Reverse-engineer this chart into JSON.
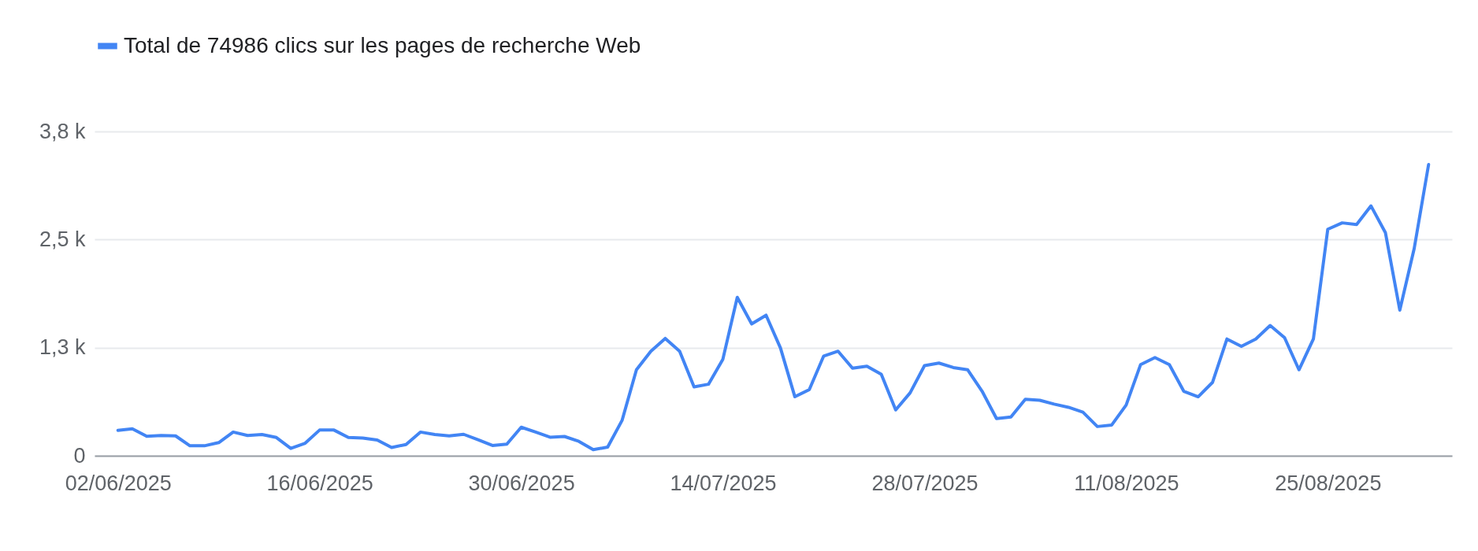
{
  "chart_data": {
    "type": "line",
    "legend": "top left",
    "grid": "y",
    "marker": "none",
    "line_style": "solid",
    "x": [
      "2025-06-02",
      "2025-06-03",
      "2025-06-04",
      "2025-06-05",
      "2025-06-06",
      "2025-06-07",
      "2025-06-08",
      "2025-06-09",
      "2025-06-10",
      "2025-06-11",
      "2025-06-12",
      "2025-06-13",
      "2025-06-14",
      "2025-06-15",
      "2025-06-16",
      "2025-06-17",
      "2025-06-18",
      "2025-06-19",
      "2025-06-20",
      "2025-06-21",
      "2025-06-22",
      "2025-06-23",
      "2025-06-24",
      "2025-06-25",
      "2025-06-26",
      "2025-06-27",
      "2025-06-28",
      "2025-06-29",
      "2025-06-30",
      "2025-07-01",
      "2025-07-02",
      "2025-07-03",
      "2025-07-04",
      "2025-07-05",
      "2025-07-06",
      "2025-07-07",
      "2025-07-08",
      "2025-07-09",
      "2025-07-10",
      "2025-07-11",
      "2025-07-12",
      "2025-07-13",
      "2025-07-14",
      "2025-07-15",
      "2025-07-16",
      "2025-07-17",
      "2025-07-18",
      "2025-07-19",
      "2025-07-20",
      "2025-07-21",
      "2025-07-22",
      "2025-07-23",
      "2025-07-24",
      "2025-07-25",
      "2025-07-26",
      "2025-07-27",
      "2025-07-28",
      "2025-07-29",
      "2025-07-30",
      "2025-07-31",
      "2025-08-01",
      "2025-08-02",
      "2025-08-03",
      "2025-08-04",
      "2025-08-05",
      "2025-08-06",
      "2025-08-07",
      "2025-08-08",
      "2025-08-09",
      "2025-08-10",
      "2025-08-11",
      "2025-08-12",
      "2025-08-13",
      "2025-08-14",
      "2025-08-15",
      "2025-08-16",
      "2025-08-17",
      "2025-08-18",
      "2025-08-19",
      "2025-08-20",
      "2025-08-21",
      "2025-08-22",
      "2025-08-23",
      "2025-08-24",
      "2025-08-25",
      "2025-08-26",
      "2025-08-27",
      "2025-08-28",
      "2025-08-29",
      "2025-08-30",
      "2025-08-31",
      "2025-09-01"
    ],
    "series": [
      {
        "name": "Total de 74986 clics sur les pages de recherche Web",
        "color": "#4285f4",
        "values": [
          293,
          312,
          226,
          234,
          230,
          115,
          115,
          152,
          274,
          234,
          245,
          211,
          85,
          145,
          297,
          297,
          211,
          204,
          182,
          96,
          130,
          274,
          245,
          230,
          248,
          185,
          119,
          134,
          330,
          274,
          215,
          223,
          167,
          70,
          100,
          408,
          994,
          1209,
          1357,
          1209,
          797,
          827,
          1116,
          1832,
          1524,
          1625,
          1246,
          682,
          764,
          1153,
          1209,
          1013,
          1035,
          942,
          530,
          727,
          1042,
          1072,
          1020,
          994,
          746,
          430,
          449,
          653,
          642,
          597,
          560,
          504,
          338,
          356,
          586,
          1053,
          1135,
          1053,
          746,
          682,
          849,
          1350,
          1265,
          1350,
          1506,
          1365,
          994,
          1350,
          2619,
          2693,
          2674,
          2889,
          2581,
          1684,
          2396,
          3368
        ]
      }
    ],
    "xlim": [
      "2025-05-31T09:00",
      "2025-09-02T15:00"
    ],
    "xticks": [
      {
        "value": "2025-06-02",
        "label": "02/06/2025"
      },
      {
        "value": "2025-06-16",
        "label": "16/06/2025"
      },
      {
        "value": "2025-06-30",
        "label": "30/06/2025"
      },
      {
        "value": "2025-07-14",
        "label": "14/07/2025"
      },
      {
        "value": "2025-07-28",
        "label": "28/07/2025"
      },
      {
        "value": "2025-08-11",
        "label": "11/08/2025"
      },
      {
        "value": "2025-08-25",
        "label": "25/08/2025"
      }
    ],
    "ylim": [
      0,
      3750
    ],
    "yticks": [
      0,
      {
        "value": 1250,
        "label": "1,3 k"
      },
      {
        "value": 2500,
        "label": "2,5 k"
      },
      {
        "value": 3750,
        "label": "3,8 k"
      }
    ]
  }
}
